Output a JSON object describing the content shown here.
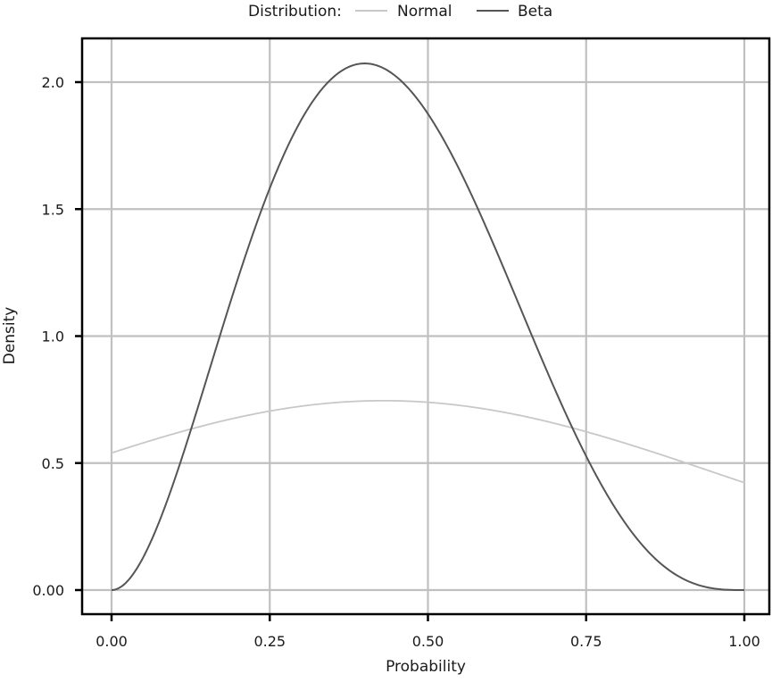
{
  "chart_data": {
    "type": "line",
    "title": "",
    "xlabel": "Probability",
    "ylabel": "Density",
    "xlim": [
      -0.05,
      1.05
    ],
    "ylim": [
      -0.1,
      2.18
    ],
    "x_ticks": [
      0.0,
      0.25,
      0.5,
      0.75,
      1.0
    ],
    "x_tick_labels": [
      "0.00",
      "0.25",
      "0.50",
      "0.75",
      "1.00"
    ],
    "y_ticks": [
      0.0,
      0.5,
      1.0,
      1.5,
      2.0
    ],
    "y_tick_labels": [
      "0.00",
      "0.5",
      "1.0",
      "1.5",
      "2.0"
    ],
    "grid": true,
    "legend": {
      "position": "top",
      "title": "Distribution:",
      "entries": [
        {
          "label": "Normal",
          "color": "#c8c8c8"
        },
        {
          "label": "Beta",
          "color": "#555555"
        }
      ]
    },
    "x": [
      0.0,
      0.05,
      0.1,
      0.15,
      0.2,
      0.25,
      0.3,
      0.35,
      0.4,
      0.45,
      0.5,
      0.55,
      0.6,
      0.65,
      0.7,
      0.75,
      0.8,
      0.85,
      0.9,
      0.95,
      1.0
    ],
    "series": [
      {
        "name": "Normal",
        "color": "#c8c8c8",
        "values": [
          0.54,
          0.58,
          0.62,
          0.65,
          0.68,
          0.71,
          0.73,
          0.74,
          0.745,
          0.745,
          0.74,
          0.73,
          0.71,
          0.69,
          0.66,
          0.62,
          0.59,
          0.55,
          0.51,
          0.46,
          0.42
        ]
      },
      {
        "name": "Beta",
        "color": "#555555",
        "values": [
          0.0,
          0.13,
          0.44,
          0.83,
          1.23,
          1.58,
          1.85,
          2.02,
          2.07,
          2.01,
          1.88,
          1.67,
          1.38,
          1.08,
          0.79,
          0.53,
          0.31,
          0.15,
          0.054,
          0.0095,
          0.0
        ]
      }
    ]
  },
  "legend": {
    "title": "Distribution:",
    "items": [
      "Normal",
      "Beta"
    ]
  },
  "axes": {
    "xlabel": "Probability",
    "ylabel": "Density"
  }
}
